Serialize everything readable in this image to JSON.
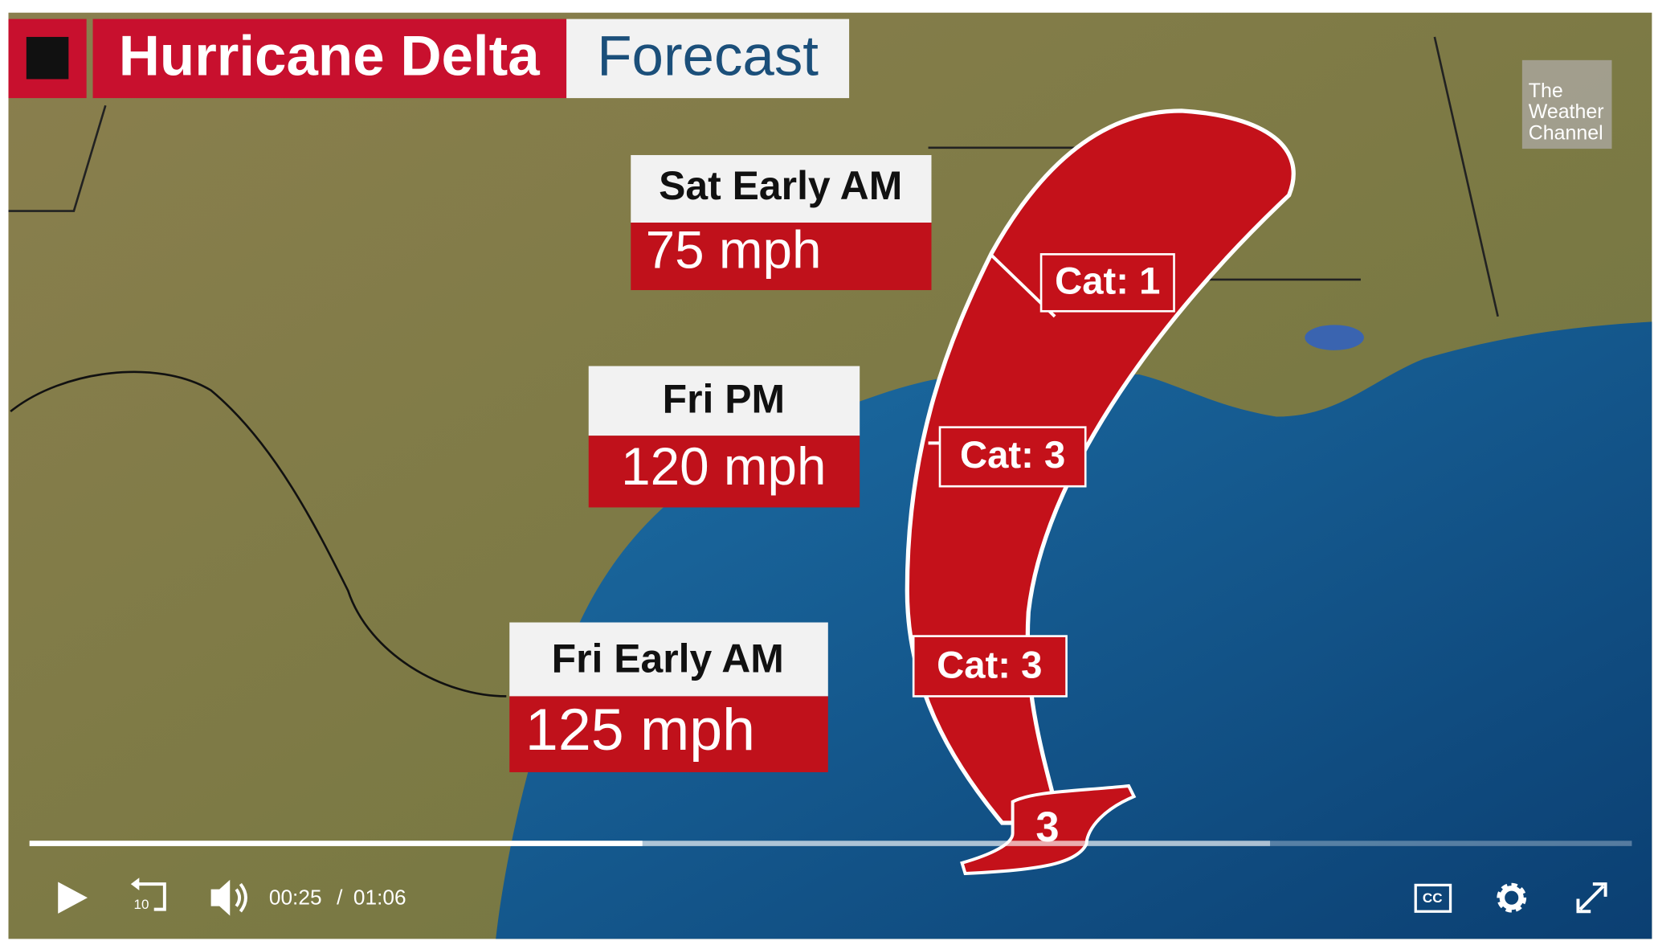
{
  "title": {
    "badge": "Hurricane Delta",
    "subtitle": "Forecast"
  },
  "logo": {
    "lines": [
      "The",
      "Weather",
      "Channel"
    ]
  },
  "forecast_labels": [
    {
      "time": "Sat Early AM",
      "wind": "75 mph"
    },
    {
      "time": "Fri PM",
      "wind": "120 mph"
    },
    {
      "time": "Fri Early AM",
      "wind": "125 mph"
    }
  ],
  "category_labels": [
    "Cat: 1",
    "Cat: 3",
    "Cat: 3"
  ],
  "storm_icon": "3",
  "player": {
    "skip_seconds": "10",
    "current_time": "00:25",
    "separator": "/",
    "duration": "01:06",
    "captions": "CC"
  }
}
